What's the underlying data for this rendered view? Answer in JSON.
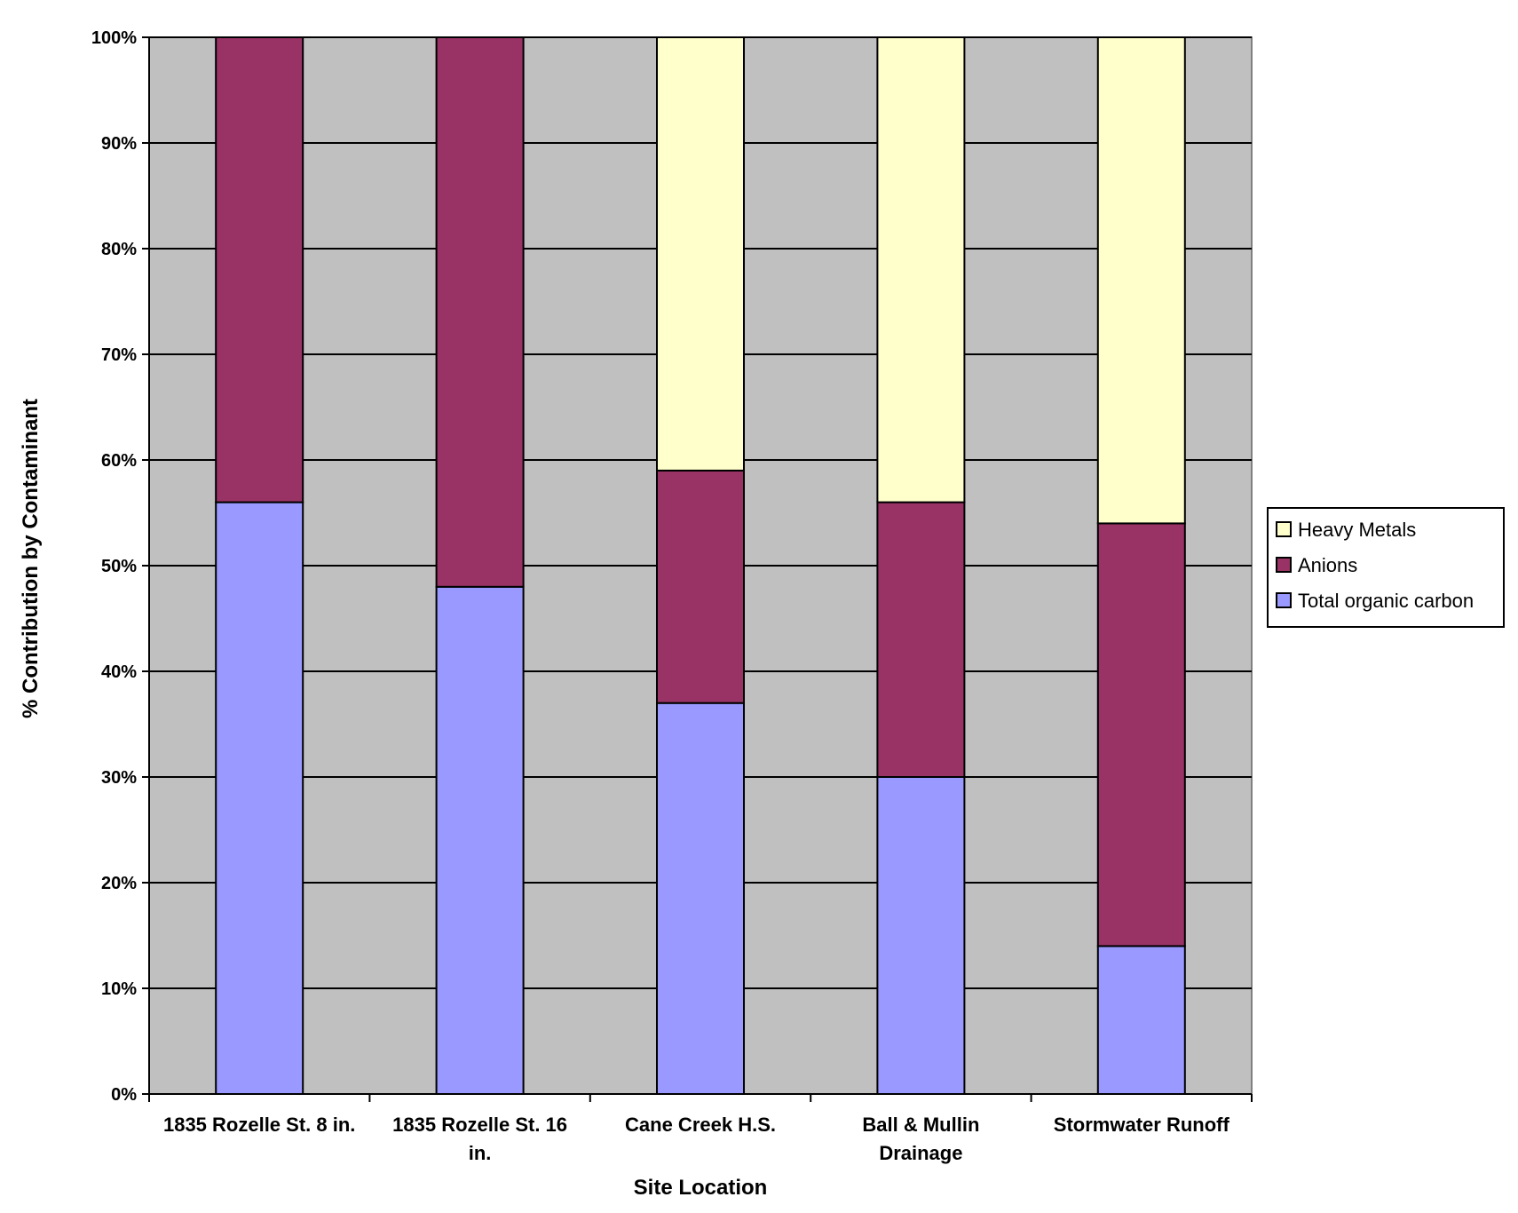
{
  "chart_data": {
    "type": "bar",
    "stacked": true,
    "percent_stacked": true,
    "categories": [
      [
        "1835 Rozelle St. 8 in."
      ],
      [
        "1835 Rozelle St. 16",
        "in."
      ],
      [
        "Cane Creek H.S."
      ],
      [
        "Ball & Mullin",
        "Drainage"
      ],
      [
        "Stormwater Runoff"
      ]
    ],
    "series": [
      {
        "name": "Total organic carbon",
        "color": "#9999ff",
        "values": [
          56,
          48,
          37,
          30,
          14
        ]
      },
      {
        "name": "Anions",
        "color": "#993366",
        "values": [
          44,
          52,
          22,
          26,
          40
        ]
      },
      {
        "name": "Heavy Metals",
        "color": "#ffffcc",
        "values": [
          0,
          0,
          41,
          44,
          46
        ]
      }
    ],
    "xlabel": "Site Location",
    "ylabel": "% Contribution by Contaminant",
    "ylim": [
      0,
      100
    ],
    "yticks": [
      "0%",
      "10%",
      "20%",
      "30%",
      "40%",
      "50%",
      "60%",
      "70%",
      "80%",
      "90%",
      "100%"
    ],
    "grid": true,
    "plot_background": "#c0c0c0",
    "legend_position": "right",
    "legend_order": [
      "Heavy Metals",
      "Anions",
      "Total organic carbon"
    ]
  }
}
